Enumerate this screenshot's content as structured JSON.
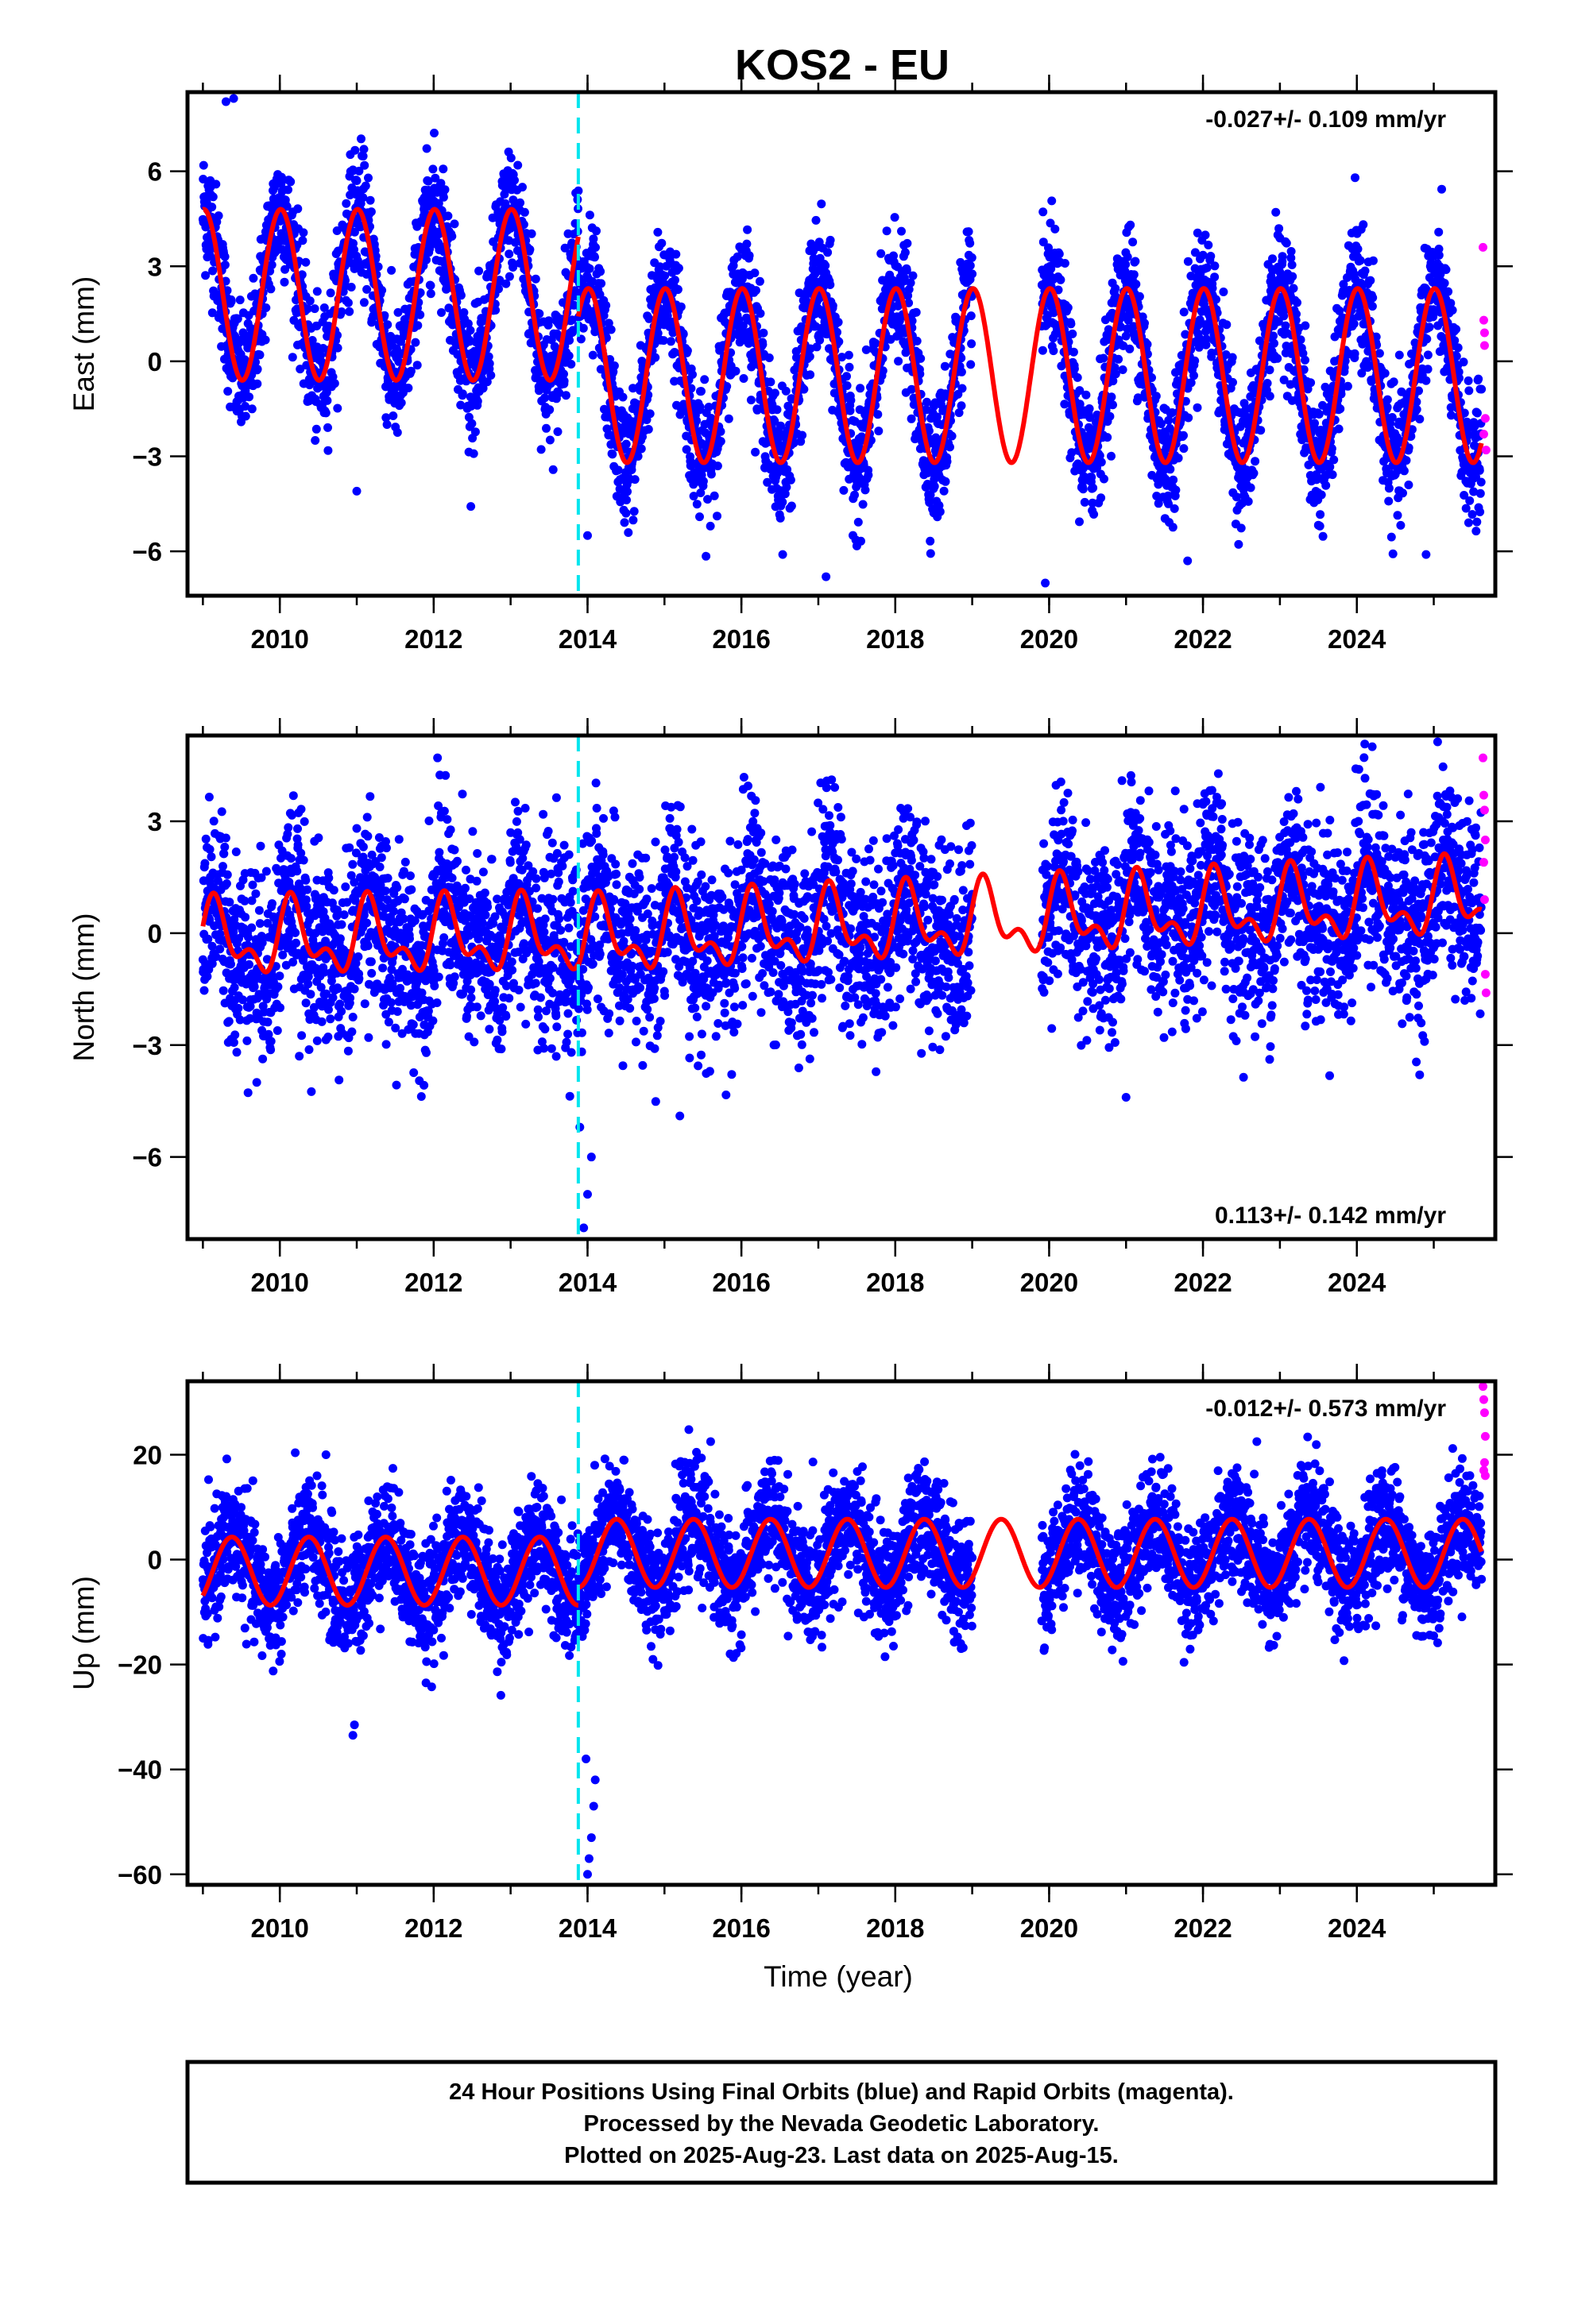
{
  "title": "KOS2 - EU",
  "colors": {
    "final_points": "#0000ff",
    "rapid_points": "#ff00ff",
    "fit": "#ff0000",
    "antenna_change": "#00e5ee",
    "frame": "#000000"
  },
  "chart_data": [
    {
      "type": "scatter",
      "component": "east",
      "ylabel": "East (mm)",
      "xlabel": "",
      "xlim": [
        2008.8,
        2025.8
      ],
      "ylim": [
        -7.4,
        8.5
      ],
      "yticks": [
        -6,
        -3,
        0,
        3,
        6
      ],
      "xticks": [
        2010,
        2012,
        2014,
        2016,
        2018,
        2020,
        2022,
        2024
      ],
      "rate_text": "-0.027+/- 0.109 mm/yr",
      "rate_position": "top-right",
      "grid": false,
      "step_epoch": 2013.88,
      "data_span": [
        2009.0,
        2025.62
      ],
      "gap": [
        2019.0,
        2019.9
      ],
      "fit": [
        {
          "start": 2009.0,
          "end": 2013.88,
          "amplitude": 2.7,
          "offset": 2.1,
          "phase": 1.5,
          "trend": 0
        },
        {
          "start": 2013.88,
          "end": 2025.62,
          "amplitude": 2.75,
          "offset": -0.45,
          "phase": 1.5,
          "trend": 0
        }
      ],
      "scatter_noise": 1.0,
      "outliers": [
        [
          2009.3,
          8.2
        ],
        [
          2009.4,
          8.3
        ],
        [
          2014.0,
          -5.5
        ],
        [
          2019.95,
          -7.0
        ],
        [
          2017.1,
          -6.8
        ],
        [
          2021.8,
          -6.3
        ],
        [
          2024.9,
          -6.1
        ],
        [
          2011.0,
          -4.1
        ]
      ],
      "rapid_points": [
        [
          2025.64,
          3.6
        ],
        [
          2025.65,
          1.3
        ],
        [
          2025.66,
          0.5
        ],
        [
          2025.67,
          -1.8
        ],
        [
          2025.68,
          -2.8
        ],
        [
          2025.66,
          0.9
        ],
        [
          2025.65,
          -2.3
        ]
      ]
    },
    {
      "type": "scatter",
      "component": "north",
      "ylabel": "North (mm)",
      "xlabel": "",
      "xlim": [
        2008.8,
        2025.8
      ],
      "ylim": [
        -8.2,
        5.3
      ],
      "yticks": [
        -6,
        -3,
        0,
        3
      ],
      "xticks": [
        2010,
        2012,
        2014,
        2016,
        2018,
        2020,
        2022,
        2024
      ],
      "rate_text": "0.113+/- 0.142 mm/yr",
      "rate_position": "bottom-right",
      "grid": false,
      "step_epoch": 2013.88,
      "data_span": [
        2009.0,
        2025.62
      ],
      "gap": [
        2019.0,
        2019.9
      ],
      "fit": [
        {
          "start": 2009.0,
          "end": 2013.88,
          "amplitude": 0.8,
          "offset": -0.2,
          "phase": 0.5,
          "trend": 0.02,
          "semiannual": 0.5
        },
        {
          "start": 2013.88,
          "end": 2025.62,
          "amplitude": 0.8,
          "offset": -0.6,
          "phase": 0.5,
          "trend": 0.09,
          "semiannual": 0.5
        }
      ],
      "scatter_noise": 1.25,
      "outliers": [
        [
          2013.95,
          -7.9
        ],
        [
          2014.0,
          -7.0
        ],
        [
          2014.05,
          -6.0
        ],
        [
          2013.9,
          -5.2
        ],
        [
          2012.05,
          4.7
        ],
        [
          2024.2,
          5.0
        ],
        [
          2021.0,
          -4.4
        ],
        [
          2009.7,
          -4.0
        ],
        [
          2015.2,
          -4.9
        ]
      ],
      "rapid_points": [
        [
          2025.64,
          4.7
        ],
        [
          2025.65,
          3.7
        ],
        [
          2025.66,
          3.3
        ],
        [
          2025.67,
          2.5
        ],
        [
          2025.65,
          1.9
        ],
        [
          2025.66,
          0.9
        ],
        [
          2025.67,
          -1.1
        ],
        [
          2025.68,
          -1.6
        ]
      ]
    },
    {
      "type": "scatter",
      "component": "up",
      "ylabel": "Up (mm)",
      "xlabel": "Time (year)",
      "xlim": [
        2008.8,
        2025.8
      ],
      "ylim": [
        -62,
        34
      ],
      "yticks": [
        -60,
        -40,
        -20,
        0,
        20
      ],
      "xticks": [
        2010,
        2012,
        2014,
        2016,
        2018,
        2020,
        2022,
        2024
      ],
      "rate_text": "-0.012+/- 0.573 mm/yr",
      "rate_position": "top-right",
      "grid": false,
      "step_epoch": 2013.88,
      "data_span": [
        2009.0,
        2025.62
      ],
      "gap": [
        2019.0,
        2019.9
      ],
      "fit": [
        {
          "start": 2009.0,
          "end": 2013.88,
          "amplitude": 6.5,
          "offset": -2.2,
          "phase": -0.8,
          "trend": 0
        },
        {
          "start": 2013.88,
          "end": 2025.62,
          "amplitude": 6.5,
          "offset": 1.2,
          "phase": -0.8,
          "trend": 0
        }
      ],
      "scatter_noise": 5.5,
      "outliers": [
        [
          2010.95,
          -33.5
        ],
        [
          2010.97,
          -31.5
        ],
        [
          2014.0,
          -60.0
        ],
        [
          2014.02,
          -57.0
        ],
        [
          2014.05,
          -53.0
        ],
        [
          2014.08,
          -47.0
        ],
        [
          2014.1,
          -42.0
        ],
        [
          2013.98,
          -38.0
        ],
        [
          2011.9,
          -23.5
        ],
        [
          2015.6,
          22.5
        ],
        [
          2022.7,
          22.5
        ],
        [
          2010.6,
          20.0
        ]
      ],
      "rapid_points": [
        [
          2025.64,
          33.0
        ],
        [
          2025.65,
          30.5
        ],
        [
          2025.66,
          28.0
        ],
        [
          2025.67,
          23.5
        ],
        [
          2025.66,
          18.5
        ],
        [
          2025.65,
          17.0
        ],
        [
          2025.67,
          16.0
        ]
      ]
    }
  ],
  "footer": {
    "line1": "24 Hour Positions Using Final Orbits (blue) and Rapid Orbits (magenta).",
    "line2": "Processed by the Nevada Geodetic Laboratory.",
    "line3": "Plotted on 2025-Aug-23. Last data on 2025-Aug-15."
  }
}
